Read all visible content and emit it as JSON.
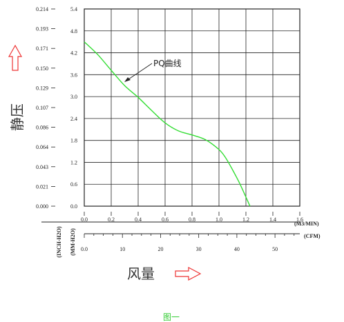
{
  "chart_data": {
    "type": "line",
    "title": "",
    "annotation": "PQ曲线",
    "ylabel": "静压",
    "xlabel": "风量",
    "caption": "图一",
    "x_axis_primary": {
      "range": [
        0,
        1.6
      ],
      "ticks": [
        "0.0",
        "0.2",
        "0.4",
        "0.6",
        "0.8",
        "1.0",
        "1.2",
        "1.4",
        "1.6"
      ],
      "unit": "(M3/MIN)"
    },
    "x_axis_secondary": {
      "range": [
        0,
        56.5
      ],
      "ticks": [
        "0.0",
        "10",
        "20",
        "30",
        "40",
        "50"
      ],
      "tick_values": [
        0,
        10,
        20,
        30,
        40,
        50
      ],
      "unit": "(CFM)"
    },
    "y_axis_left": {
      "range": [
        0,
        0.214
      ],
      "ticks": [
        "0.000",
        "0.021",
        "0.043",
        "0.064",
        "0.086",
        "0.107",
        "0.129",
        "0.150",
        "0.171",
        "0.193",
        "0.214"
      ],
      "unit": "(INCH-H2O)"
    },
    "y_axis_right": {
      "range": [
        0,
        5.4
      ],
      "ticks": [
        "0.0",
        "0.6",
        "1.2",
        "1.8",
        "2.4",
        "3.0",
        "3.6",
        "4.2",
        "4.8",
        "5.4"
      ],
      "unit": "(MM-H2O)"
    },
    "grid": true,
    "series": [
      {
        "color": "#33dd33",
        "x": [
          0.0,
          0.1,
          0.2,
          0.3,
          0.4,
          0.5,
          0.6,
          0.7,
          0.8,
          0.9,
          1.0,
          1.05,
          1.1,
          1.15,
          1.2,
          1.23
        ],
        "y": [
          4.5,
          4.15,
          3.72,
          3.3,
          2.98,
          2.62,
          2.28,
          2.06,
          1.95,
          1.82,
          1.55,
          1.32,
          1.0,
          0.65,
          0.25,
          0.0
        ]
      }
    ]
  },
  "colors": {
    "curve": "#33dd33",
    "arrow": "#ee3333",
    "caption": "#33cc33",
    "grid": "#222222"
  }
}
